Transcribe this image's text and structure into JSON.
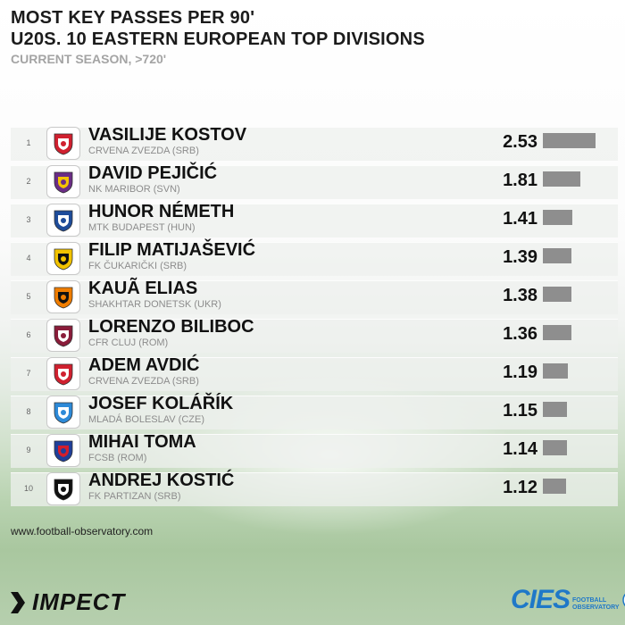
{
  "header": {
    "title_line1": "MOST KEY PASSES PER 90'",
    "title_line2": "U20S. 10 EASTERN EUROPEAN TOP DIVISIONS",
    "subtitle": "CURRENT SEASON, >720'"
  },
  "chart_data": {
    "type": "bar",
    "title": "MOST KEY PASSES PER 90' U20S. 10 EASTERN EUROPEAN TOP DIVISIONS",
    "subtitle": "CURRENT SEASON, >720'",
    "orientation": "horizontal",
    "xlim": [
      0,
      2.53
    ],
    "categories": [
      "VASILIJE KOSTOV",
      "DAVID PEJIČIĆ",
      "HUNOR NÉMETH",
      "FILIP MATIJAŠEVIĆ",
      "KAUÃ ELIAS",
      "LORENZO BILIBOC",
      "ADEM AVDIĆ",
      "JOSEF KOLÁŘÍK",
      "MIHAI TOMA",
      "ANDREJ KOSTIĆ"
    ],
    "values": [
      2.53,
      1.81,
      1.41,
      1.39,
      1.38,
      1.36,
      1.19,
      1.15,
      1.14,
      1.12
    ],
    "rows": [
      {
        "rank": "1",
        "player": "VASILIJE KOSTOV",
        "club": "CRVENA ZVEZDA (SRB)",
        "value": 2.53,
        "value_label": "2.53",
        "crest": "crvena-zvezda-crest",
        "crest_colors": [
          "#d0202f",
          "#ffffff"
        ]
      },
      {
        "rank": "2",
        "player": "DAVID PEJIČIĆ",
        "club": "NK MARIBOR (SVN)",
        "value": 1.81,
        "value_label": "1.81",
        "crest": "maribor-crest",
        "crest_colors": [
          "#6b2d86",
          "#f4c400"
        ]
      },
      {
        "rank": "3",
        "player": "HUNOR NÉMETH",
        "club": "MTK BUDAPEST (HUN)",
        "value": 1.41,
        "value_label": "1.41",
        "crest": "mtk-crest",
        "crest_colors": [
          "#1e4c9a",
          "#ffffff"
        ]
      },
      {
        "rank": "4",
        "player": "FILIP MATIJAŠEVIĆ",
        "club": "FK ČUKARIČKI (SRB)",
        "value": 1.39,
        "value_label": "1.39",
        "crest": "cukaricki-crest",
        "crest_colors": [
          "#f2c300",
          "#111111"
        ]
      },
      {
        "rank": "5",
        "player": "KAUÃ ELIAS",
        "club": "SHAKHTAR DONETSK (UKR)",
        "value": 1.38,
        "value_label": "1.38",
        "crest": "shakhtar-crest",
        "crest_colors": [
          "#f07d00",
          "#111111"
        ]
      },
      {
        "rank": "6",
        "player": "LORENZO BILIBOC",
        "club": "CFR CLUJ (ROM)",
        "value": 1.36,
        "value_label": "1.36",
        "crest": "cfr-cluj-crest",
        "crest_colors": [
          "#8a1c3a",
          "#ffffff"
        ]
      },
      {
        "rank": "7",
        "player": "ADEM AVDIĆ",
        "club": "CRVENA ZVEZDA (SRB)",
        "value": 1.19,
        "value_label": "1.19",
        "crest": "crvena-zvezda-crest",
        "crest_colors": [
          "#d0202f",
          "#ffffff"
        ]
      },
      {
        "rank": "8",
        "player": "JOSEF KOLÁŘÍK",
        "club": "MLADÁ BOLESLAV (CZE)",
        "value": 1.15,
        "value_label": "1.15",
        "crest": "mlada-boleslav-crest",
        "crest_colors": [
          "#2d8ad8",
          "#ffffff"
        ]
      },
      {
        "rank": "9",
        "player": "MIHAI TOMA",
        "club": "FCSB (ROM)",
        "value": 1.14,
        "value_label": "1.14",
        "crest": "fcsb-crest",
        "crest_colors": [
          "#1f3f9a",
          "#d31f2c"
        ]
      },
      {
        "rank": "10",
        "player": "ANDREJ KOSTIĆ",
        "club": "FK PARTIZAN (SRB)",
        "value": 1.12,
        "value_label": "1.12",
        "crest": "partizan-crest",
        "crest_colors": [
          "#111111",
          "#ffffff"
        ]
      }
    ]
  },
  "footer": {
    "url": "www.football-observatory.com",
    "impect": "IMPECT",
    "cies": "CIES",
    "cies_sub_1": "FOOTBALL",
    "cies_sub_2": "OBSERVATORY"
  },
  "colors": {
    "bar": "#8e8e8e",
    "cies_blue": "#1f78c8",
    "subtitle_gray": "#a4a4a4"
  }
}
